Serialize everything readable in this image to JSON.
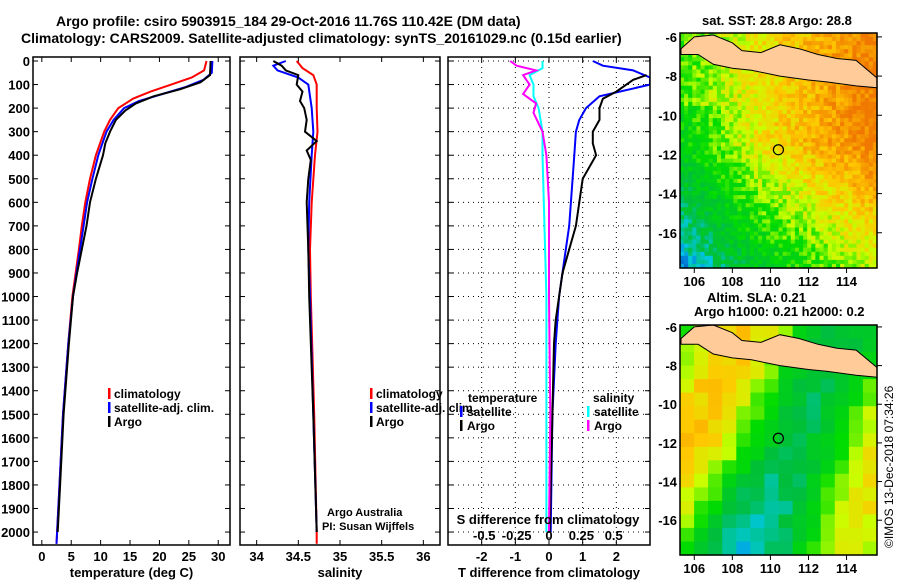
{
  "titles": {
    "line1": "Argo profile: csiro 5903915_184 29-Oct-2016 11.76S 110.42E (DM data)",
    "line2": "Climatology: CARS2009. Satellite-adjusted climatology: synTS_20161029.nc (0.15d earlier)"
  },
  "footer": "©IMOS 13-Dec-2018 07:34:26",
  "colors": {
    "climatology": "#ff0000",
    "satellite": "#0000ff",
    "argo": "#000000",
    "sal_sat": "#00ffff",
    "sal_argo": "#ff00ff",
    "land": "#ffcc99"
  },
  "chart_data": [
    {
      "type": "line",
      "name": "temperature",
      "xlabel": "temperature (deg C)",
      "ylabel": "",
      "xlim": [
        -1.5,
        32
      ],
      "ylim": [
        2055,
        -17
      ],
      "xticks": [
        "0",
        "5",
        "10",
        "15",
        "20",
        "25",
        "30"
      ],
      "yticks": [
        "0",
        "100",
        "200",
        "300",
        "400",
        "500",
        "600",
        "700",
        "800",
        "900",
        "1000",
        "1100",
        "1200",
        "1300",
        "1400",
        "1500",
        "1600",
        "1700",
        "1800",
        "1900",
        "2000"
      ],
      "legend": [
        "climatology",
        "satellite-adj. clim.",
        "Argo"
      ],
      "series": [
        {
          "name": "climatology",
          "depth": [
            0,
            40,
            70,
            100,
            130,
            160,
            200,
            250,
            300,
            400,
            500,
            600,
            700,
            800,
            1000,
            1200,
            1500,
            1800,
            2050
          ],
          "values": [
            28.0,
            27.6,
            25.5,
            22.0,
            18.5,
            15.5,
            13.0,
            11.6,
            10.6,
            9.2,
            8.2,
            7.4,
            6.8,
            6.3,
            5.2,
            4.5,
            3.6,
            3.0,
            2.5
          ]
        },
        {
          "name": "satellite-adj. clim.",
          "depth": [
            0,
            50,
            80,
            110,
            140,
            170,
            200,
            250,
            300,
            400,
            500,
            600,
            700,
            800,
            1000,
            1200,
            1500,
            1800,
            2050
          ],
          "values": [
            29.0,
            28.9,
            27.5,
            24.5,
            20.5,
            16.5,
            14.0,
            12.2,
            11.0,
            9.6,
            8.6,
            7.7,
            7.1,
            6.5,
            5.3,
            4.5,
            3.6,
            3.0,
            2.5
          ]
        },
        {
          "name": "Argo",
          "depth": [
            0,
            60,
            90,
            120,
            150,
            180,
            210,
            250,
            300,
            350,
            400,
            500,
            600,
            700,
            800,
            900,
            1000,
            1200,
            1500,
            1800,
            2000
          ],
          "values": [
            28.7,
            28.6,
            27.0,
            23.5,
            19.0,
            16.0,
            14.2,
            12.6,
            11.6,
            10.8,
            10.4,
            9.2,
            8.2,
            7.6,
            6.8,
            6.0,
            5.3,
            4.6,
            3.7,
            3.1,
            2.7
          ]
        }
      ]
    },
    {
      "type": "line",
      "name": "salinity",
      "xlabel": "salinity",
      "xlim": [
        33.8,
        36.2
      ],
      "ylim": [
        2055,
        -17
      ],
      "xticks": [
        "34",
        "34.5",
        "35",
        "35.5",
        "36"
      ],
      "legend": [
        "climatology",
        "satellite-adj. clim.",
        "Argo"
      ],
      "annotation": [
        "Argo Australia",
        "PI: Susan Wijffels"
      ],
      "series": [
        {
          "name": "climatology",
          "depth": [
            0,
            30,
            60,
            100,
            200,
            300,
            400,
            600,
            800,
            1000,
            1500,
            2000,
            2050
          ],
          "values": [
            34.48,
            34.55,
            34.68,
            34.72,
            34.72,
            34.73,
            34.7,
            34.66,
            34.64,
            34.65,
            34.69,
            34.72,
            34.72
          ]
        },
        {
          "name": "satellite-adj. clim.",
          "depth": [
            0,
            20,
            40,
            70,
            100,
            150,
            200,
            300,
            400,
            600,
            800,
            1000,
            1500,
            2000
          ],
          "values": [
            34.35,
            34.2,
            34.25,
            34.5,
            34.62,
            34.64,
            34.66,
            34.68,
            34.66,
            34.63,
            34.62,
            34.64,
            34.68,
            34.72
          ]
        },
        {
          "name": "Argo",
          "depth": [
            0,
            20,
            40,
            60,
            100,
            130,
            170,
            200,
            250,
            300,
            340,
            380,
            420,
            500,
            600,
            800,
            1000,
            1500,
            2000
          ],
          "values": [
            34.2,
            34.3,
            34.35,
            34.5,
            34.48,
            34.55,
            34.52,
            34.57,
            34.6,
            34.58,
            34.72,
            34.6,
            34.65,
            34.62,
            34.6,
            34.62,
            34.63,
            34.68,
            34.72
          ]
        }
      ]
    },
    {
      "type": "line",
      "name": "difference",
      "xlabel": "T difference from climatology",
      "x2label": "S difference from climatology",
      "xlim": [
        -3,
        3
      ],
      "x2lim": [
        -0.78,
        0.78
      ],
      "ylim": [
        2055,
        -17
      ],
      "xticks": [
        "-2",
        "-1",
        "0",
        "1",
        "2"
      ],
      "x2ticks": [
        "-0.5",
        "-0.25",
        "0",
        "0.25",
        "0.5"
      ],
      "legend_t": {
        "title": "temperature",
        "items": [
          "satellite",
          "Argo"
        ]
      },
      "legend_s": {
        "title": "salinity",
        "items": [
          "satellite",
          "Argo"
        ]
      },
      "series": [
        {
          "name": "T satellite",
          "axis": "T",
          "depth": [
            0,
            20,
            40,
            70,
            100,
            150,
            200,
            250,
            300,
            400,
            500,
            700,
            800,
            1000,
            1200,
            1500,
            2000
          ],
          "values": [
            1.3,
            1.6,
            2.5,
            3.0,
            3.0,
            1.5,
            1.1,
            0.9,
            0.8,
            0.75,
            0.7,
            0.6,
            0.5,
            0.3,
            0.2,
            0.1,
            0.05
          ]
        },
        {
          "name": "T Argo",
          "axis": "T",
          "depth": [
            60,
            80,
            100,
            130,
            160,
            200,
            250,
            300,
            350,
            400,
            500,
            600,
            700,
            800,
            900,
            1000,
            1100,
            1200,
            1500,
            2000
          ],
          "values": [
            2.9,
            2.5,
            2.3,
            2.0,
            1.6,
            1.5,
            1.5,
            1.3,
            1.3,
            1.4,
            1.0,
            0.9,
            0.8,
            0.6,
            0.4,
            0.3,
            0.2,
            0.15,
            0.1,
            0.02
          ]
        },
        {
          "name": "S satellite",
          "axis": "S",
          "depth": [
            0,
            30,
            60,
            100,
            150,
            200,
            300,
            400,
            600,
            1000,
            1500,
            2000
          ],
          "values": [
            -0.05,
            -0.05,
            -0.15,
            -0.12,
            -0.12,
            -0.08,
            -0.05,
            -0.05,
            -0.04,
            -0.02,
            -0.02,
            -0.02
          ]
        },
        {
          "name": "S Argo",
          "axis": "S",
          "depth": [
            0,
            20,
            40,
            60,
            100,
            140,
            180,
            220,
            300,
            400,
            600,
            1000,
            1500,
            2000
          ],
          "values": [
            -0.3,
            -0.25,
            -0.1,
            -0.2,
            -0.15,
            -0.2,
            -0.1,
            -0.12,
            -0.05,
            -0.02,
            0.0,
            0.0,
            0.01,
            0.0
          ]
        }
      ]
    }
  ],
  "maps": [
    {
      "title": "sat. SST: 28.8 Argo: 28.8",
      "lon_ticks": [
        "106",
        "108",
        "110",
        "112",
        "114"
      ],
      "lat_ticks": [
        "-6",
        "-8",
        "-10",
        "-12",
        "-14",
        "-16"
      ],
      "marker": {
        "lon": 110.42,
        "lat": -11.76
      }
    },
    {
      "title_lines": [
        "Altim. SLA: 0.21",
        "Argo h1000: 0.21 h2000: 0.2"
      ],
      "lon_ticks": [
        "106",
        "108",
        "110",
        "112",
        "114"
      ],
      "lat_ticks": [
        "-6",
        "-8",
        "-10",
        "-12",
        "-14",
        "-16"
      ],
      "marker": {
        "lon": 110.42,
        "lat": -11.76
      }
    }
  ]
}
